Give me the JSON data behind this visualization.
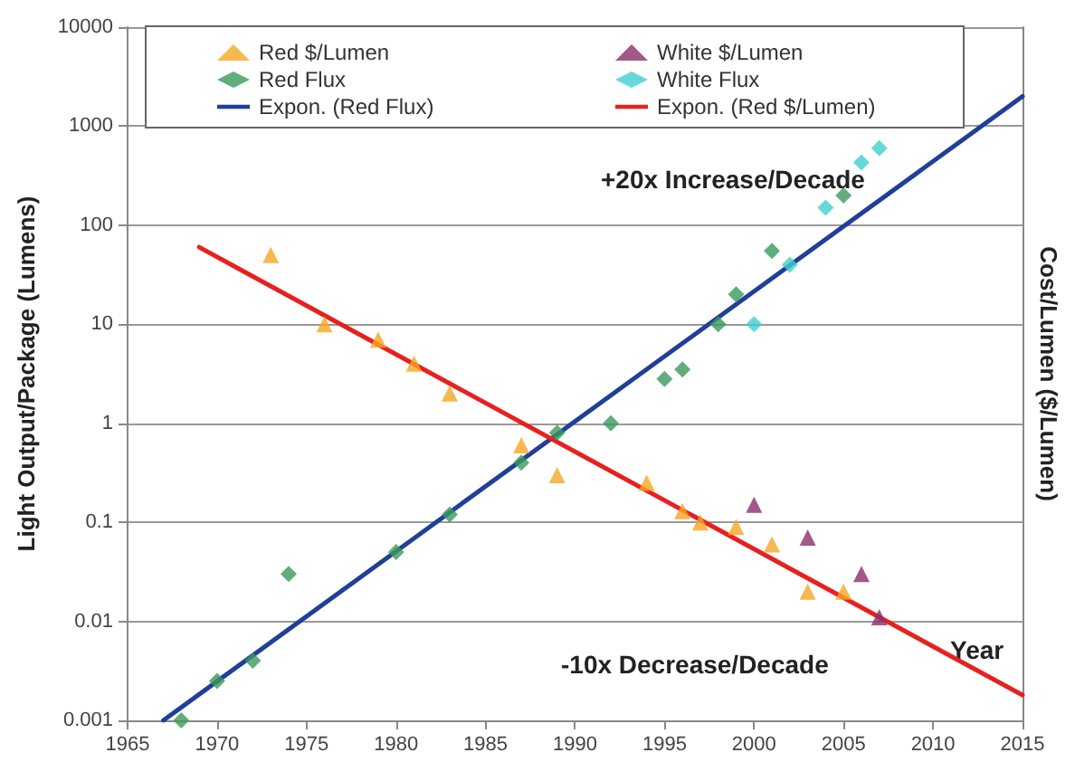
{
  "chart_data": {
    "type": "scatter",
    "xlabel": "Year",
    "ylabel": "Light Output/Package (Lumens)",
    "y2label": "Cost/Lumen ($/Lumen)",
    "log": "y",
    "grid": "y",
    "legend": "top",
    "xlim": [
      1965,
      2015
    ],
    "xticks": [
      1965,
      1970,
      1975,
      1980,
      1985,
      1990,
      1995,
      2000,
      2005,
      2010,
      2015
    ],
    "ylim": [
      0.001,
      10000
    ],
    "yticks": [
      0.001,
      0.01,
      0.1,
      1,
      10,
      100,
      1000,
      10000
    ],
    "annotations": [
      "+20x Increase/Decade",
      "-10x Decrease/Decade"
    ],
    "series": [
      {
        "name": "Red $/Lumen",
        "marker": "triangle",
        "color": "#f5a623",
        "x": [
          1973,
          1976,
          1979,
          1981,
          1983,
          1987,
          1989,
          1994,
          1996,
          1997,
          1999,
          2001,
          2003,
          2005
        ],
        "values": [
          50,
          10,
          7,
          4,
          2,
          0.6,
          0.3,
          0.25,
          0.13,
          0.1,
          0.09,
          0.06,
          0.02,
          0.02
        ]
      },
      {
        "name": "White $/Lumen",
        "marker": "triangle",
        "color": "#8b2e6b",
        "x": [
          2000,
          2003,
          2006,
          2007
        ],
        "values": [
          0.15,
          0.07,
          0.03,
          0.011
        ]
      },
      {
        "name": "Red Flux",
        "marker": "diamond",
        "color": "#3a9a5b",
        "x": [
          1968,
          1970,
          1972,
          1974,
          1980,
          1983,
          1987,
          1989,
          1992,
          1995,
          1996,
          1998,
          1999,
          2001,
          2005
        ],
        "values": [
          0.001,
          0.0025,
          0.004,
          0.03,
          0.05,
          0.12,
          0.4,
          0.8,
          1,
          2.8,
          3.5,
          10,
          20,
          55,
          200
        ]
      },
      {
        "name": "White Flux",
        "marker": "diamond",
        "color": "#3fd0d0",
        "x": [
          2000,
          2002,
          2004,
          2006,
          2007
        ],
        "values": [
          10,
          40,
          150,
          430,
          600
        ]
      },
      {
        "name": "Expon. (Red Flux)",
        "type": "line",
        "marker": "none",
        "line_style": "solid",
        "color": "#1f3f99",
        "x": [
          1967,
          2015
        ],
        "values": [
          0.001,
          2000
        ]
      },
      {
        "name": "Expon. (Red $/Lumen)",
        "type": "line",
        "marker": "none",
        "line_style": "solid",
        "color": "#e8201e",
        "x": [
          1969,
          2015
        ],
        "values": [
          60,
          0.0018
        ]
      }
    ]
  }
}
